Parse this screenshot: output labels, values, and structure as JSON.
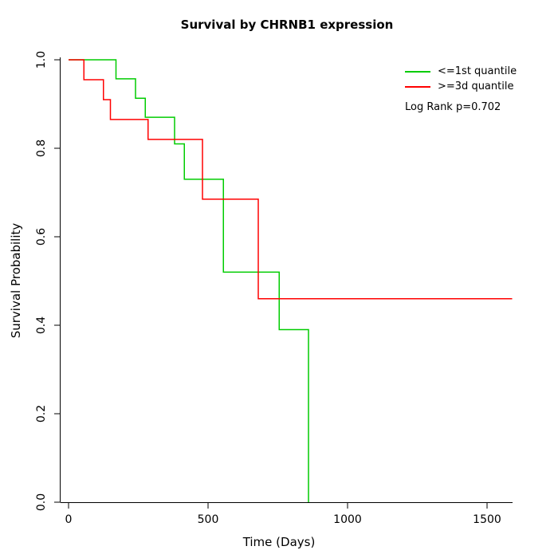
{
  "chart_data": {
    "type": "line",
    "subtype": "kaplan-meier-step",
    "title": "Survival by CHRNB1 expression",
    "xlabel": "Time (Days)",
    "ylabel": "Survival Probability",
    "xlim": [
      0,
      1600
    ],
    "ylim": [
      0.0,
      1.0
    ],
    "xticks": [
      0,
      500,
      1000,
      1500
    ],
    "xtick_labels": [
      "0",
      "500",
      "1000",
      "1500"
    ],
    "yticks": [
      0.0,
      0.2,
      0.4,
      0.6,
      0.8,
      1.0
    ],
    "ytick_labels": [
      "0.0",
      "0.2",
      "0.4",
      "0.6",
      "0.8",
      "1.0"
    ],
    "grid": false,
    "legend_position": "top-right",
    "annotation": "Log Rank p=0.702",
    "legend": [
      {
        "label": "<=1st quantile",
        "color": "#00cc00"
      },
      {
        "label": ">=3d quantile",
        "color": "#ff0000"
      }
    ],
    "series": [
      {
        "name": "<=1st quantile",
        "color": "#00cc00",
        "steps": [
          [
            0,
            1.0
          ],
          [
            170,
            0.957
          ],
          [
            240,
            0.913
          ],
          [
            275,
            0.87
          ],
          [
            380,
            0.81
          ],
          [
            415,
            0.73
          ],
          [
            555,
            0.52
          ],
          [
            755,
            0.39
          ],
          [
            860,
            0.0
          ]
        ],
        "end_time": 860
      },
      {
        "name": ">=3d quantile",
        "color": "#ff0000",
        "steps": [
          [
            0,
            1.0
          ],
          [
            55,
            0.955
          ],
          [
            125,
            0.91
          ],
          [
            150,
            0.865
          ],
          [
            285,
            0.82
          ],
          [
            480,
            0.685
          ],
          [
            680,
            0.46
          ]
        ],
        "end_time": 1590
      }
    ],
    "axis_color": "#000000",
    "line_width": 1.5
  }
}
